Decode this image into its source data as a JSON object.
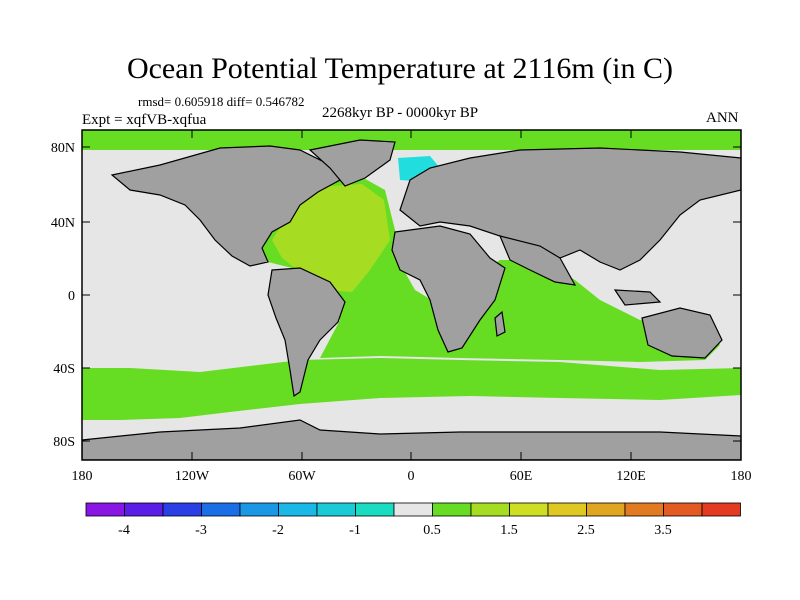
{
  "title": "Ocean Potential Temperature at 2116m (in C)",
  "stats": "rmsd= 0.605918 diff= 0.546782",
  "experiment": "Expt = xqfVB-xqfua",
  "period": "2268kyr BP - 0000kyr BP",
  "season": "ANN",
  "map": {
    "lon_ticks": [
      "180",
      "120W",
      "60W",
      "0",
      "60E",
      "120E",
      "180"
    ],
    "lat_ticks": [
      "80N",
      "40N",
      "0",
      "40S",
      "80S"
    ],
    "lon_range": [
      -180,
      180
    ],
    "lat_range": [
      -90,
      90
    ],
    "colors": {
      "land": "#a0a0a0",
      "near_zero": "#e6e6e6",
      "warm_light": "#66dd22",
      "warm_mid": "#a6dd22",
      "cool_light": "#22dddd"
    }
  },
  "colorbar": {
    "colors": [
      "#8a16e6",
      "#5a1ee6",
      "#2a3fe6",
      "#1a6ee6",
      "#1a98e6",
      "#1ab8e6",
      "#1acad6",
      "#1adcc0",
      "#e6e6e6",
      "#66dd22",
      "#a6dd22",
      "#cede22",
      "#dfc822",
      "#e0a622",
      "#e27a22",
      "#e35a22",
      "#e33a22"
    ],
    "labels": [
      "-4",
      "-3",
      "-2",
      "-1",
      "0.5",
      "1.5",
      "2.5",
      "3.5"
    ]
  }
}
